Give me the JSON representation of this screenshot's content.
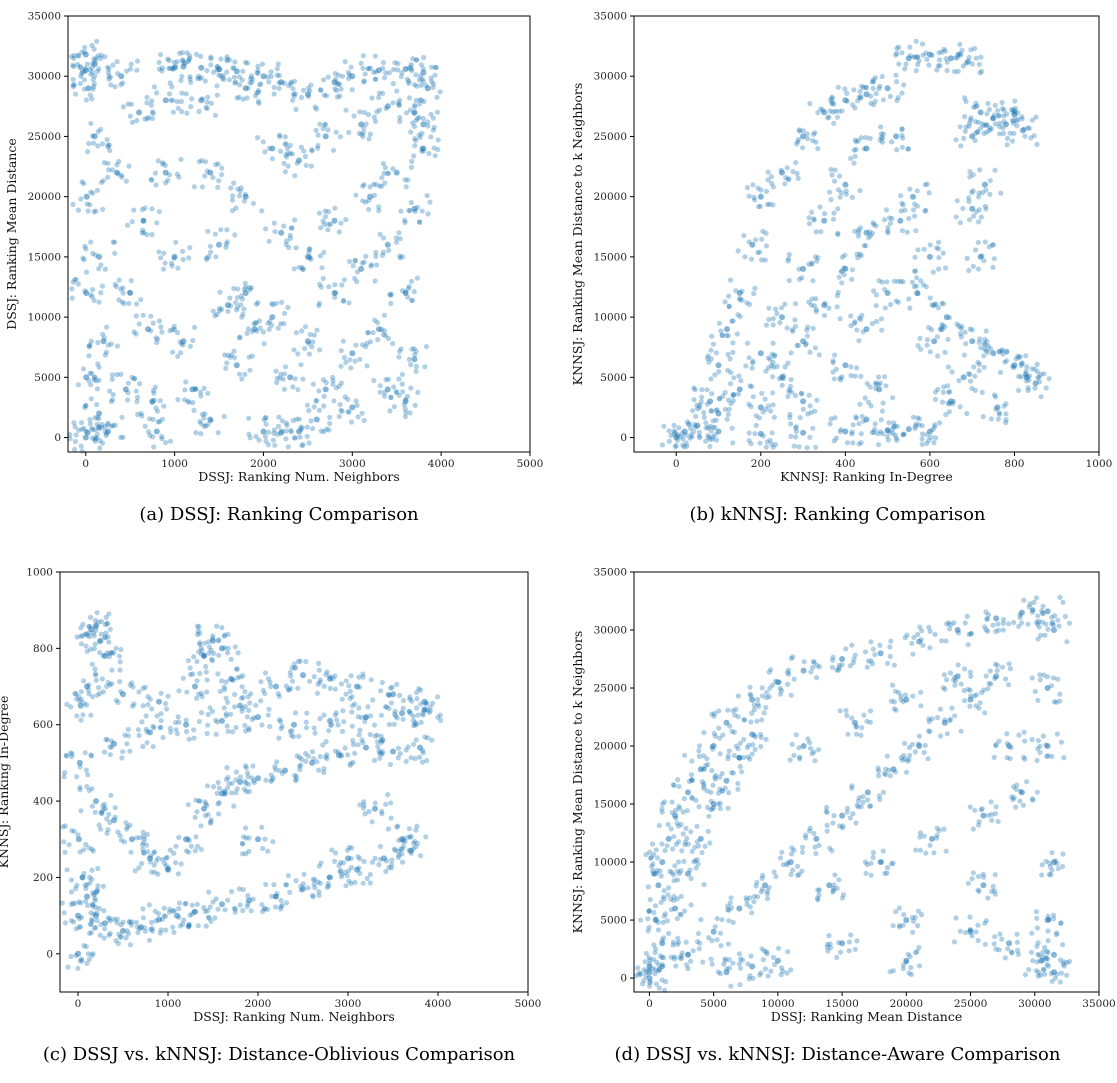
{
  "chart_data": [
    {
      "type": "scatter",
      "caption": "(a) DSSJ: Ranking Comparison",
      "xlabel": "DSSJ: Ranking Num. Neighbors",
      "ylabel": "DSSJ: Ranking Mean Distance",
      "xlim": [
        -200,
        5000
      ],
      "ylim": [
        -1200,
        35000
      ],
      "xticks": [
        0,
        1000,
        2000,
        3000,
        4000,
        5000
      ],
      "yticks": [
        0,
        5000,
        10000,
        15000,
        20000,
        25000,
        30000,
        35000
      ],
      "color": "#1f77b4",
      "grid": false,
      "points": [
        [
          0,
          31800
        ],
        [
          0,
          30500
        ],
        [
          30,
          29000
        ],
        [
          10,
          20000
        ],
        [
          5,
          12000
        ],
        [
          5,
          5000
        ],
        [
          0,
          0
        ],
        [
          20,
          400
        ],
        [
          100,
          31000
        ],
        [
          100,
          25000
        ],
        [
          150,
          15000
        ],
        [
          200,
          8000
        ],
        [
          150,
          2000
        ],
        [
          250,
          500
        ],
        [
          400,
          30000
        ],
        [
          350,
          22000
        ],
        [
          500,
          12000
        ],
        [
          450,
          4000
        ],
        [
          600,
          27000
        ],
        [
          650,
          18000
        ],
        [
          700,
          9000
        ],
        [
          750,
          3000
        ],
        [
          800,
          500
        ],
        [
          900,
          28000
        ],
        [
          1000,
          30700
        ],
        [
          1100,
          30800
        ],
        [
          1300,
          30700
        ],
        [
          1500,
          30600
        ],
        [
          1700,
          30400
        ],
        [
          900,
          22000
        ],
        [
          1000,
          15000
        ],
        [
          1100,
          8000
        ],
        [
          1200,
          4000
        ],
        [
          1300,
          28000
        ],
        [
          1400,
          22000
        ],
        [
          1500,
          16000
        ],
        [
          1600,
          11000
        ],
        [
          1700,
          6000
        ],
        [
          1400,
          1500
        ],
        [
          1800,
          29000
        ],
        [
          1800,
          20000
        ],
        [
          1800,
          12000
        ],
        [
          1900,
          9000
        ],
        [
          2000,
          30000
        ],
        [
          2200,
          29500
        ],
        [
          2500,
          28500
        ],
        [
          2800,
          29500
        ],
        [
          3000,
          30000
        ],
        [
          3300,
          30500
        ],
        [
          3600,
          30600
        ],
        [
          3800,
          30300
        ],
        [
          3850,
          29000
        ],
        [
          2100,
          24000
        ],
        [
          2400,
          23000
        ],
        [
          2700,
          25000
        ],
        [
          3100,
          26000
        ],
        [
          3400,
          27500
        ],
        [
          3700,
          27000
        ],
        [
          2200,
          17000
        ],
        [
          2500,
          15000
        ],
        [
          2800,
          18000
        ],
        [
          3200,
          20000
        ],
        [
          3500,
          22000
        ],
        [
          3800,
          24000
        ],
        [
          2100,
          10000
        ],
        [
          2500,
          8000
        ],
        [
          2800,
          12000
        ],
        [
          3100,
          14000
        ],
        [
          3400,
          16000
        ],
        [
          3700,
          19000
        ],
        [
          2300,
          5000
        ],
        [
          2700,
          4000
        ],
        [
          3000,
          7000
        ],
        [
          3300,
          9000
        ],
        [
          3600,
          12000
        ],
        [
          2600,
          1500
        ],
        [
          3000,
          2500
        ],
        [
          3400,
          4000
        ],
        [
          3700,
          6500
        ],
        [
          2000,
          500
        ],
        [
          2200,
          400
        ],
        [
          2400,
          500
        ],
        [
          3600,
          3000
        ],
        [
          3800,
          26000
        ]
      ]
    },
    {
      "type": "scatter",
      "caption": "(b) kNNSJ: Ranking Comparison",
      "xlabel": "KNNSJ: Ranking In-Degree",
      "ylabel": "KNNSJ: Ranking Mean Distance to k Neighbors",
      "xlim": [
        -100,
        1000
      ],
      "ylim": [
        -1200,
        35000
      ],
      "xticks": [
        0,
        200,
        400,
        600,
        800,
        1000
      ],
      "yticks": [
        0,
        5000,
        10000,
        15000,
        20000,
        25000,
        30000,
        35000
      ],
      "color": "#1f77b4",
      "grid": false,
      "points": [
        [
          0,
          0
        ],
        [
          20,
          500
        ],
        [
          50,
          1000
        ],
        [
          80,
          3000
        ],
        [
          100,
          6000
        ],
        [
          120,
          9000
        ],
        [
          150,
          12000
        ],
        [
          180,
          16000
        ],
        [
          200,
          20000
        ],
        [
          250,
          22000
        ],
        [
          300,
          25000
        ],
        [
          350,
          27000
        ],
        [
          400,
          28000
        ],
        [
          450,
          28500
        ],
        [
          100,
          2000
        ],
        [
          150,
          4000
        ],
        [
          200,
          7000
        ],
        [
          250,
          10000
        ],
        [
          300,
          14000
        ],
        [
          350,
          18000
        ],
        [
          400,
          21000
        ],
        [
          450,
          24000
        ],
        [
          200,
          2500
        ],
        [
          250,
          5000
        ],
        [
          300,
          8000
        ],
        [
          350,
          11000
        ],
        [
          400,
          14000
        ],
        [
          450,
          17000
        ],
        [
          300,
          3000
        ],
        [
          400,
          6000
        ],
        [
          450,
          9000
        ],
        [
          500,
          12000
        ],
        [
          100,
          500
        ],
        [
          200,
          300
        ],
        [
          300,
          400
        ],
        [
          400,
          500
        ],
        [
          500,
          600
        ],
        [
          550,
          700
        ],
        [
          500,
          29000
        ],
        [
          550,
          31500
        ],
        [
          600,
          31800
        ],
        [
          650,
          31500
        ],
        [
          690,
          31200
        ],
        [
          520,
          25000
        ],
        [
          560,
          20000
        ],
        [
          600,
          15000
        ],
        [
          640,
          10000
        ],
        [
          680,
          5000
        ],
        [
          530,
          18000
        ],
        [
          570,
          12000
        ],
        [
          610,
          8000
        ],
        [
          650,
          3000
        ],
        [
          700,
          25000
        ],
        [
          720,
          27000
        ],
        [
          750,
          26500
        ],
        [
          780,
          26000
        ],
        [
          800,
          26800
        ],
        [
          820,
          25500
        ],
        [
          700,
          8000
        ],
        [
          750,
          7000
        ],
        [
          800,
          6000
        ],
        [
          830,
          5000
        ],
        [
          850,
          4500
        ],
        [
          760,
          2500
        ],
        [
          720,
          15000
        ],
        [
          700,
          19000
        ],
        [
          730,
          21000
        ],
        [
          480,
          4000
        ],
        [
          450,
          1500
        ],
        [
          600,
          500
        ]
      ]
    },
    {
      "type": "scatter",
      "caption": "(c) DSSJ vs. kNNSJ: Distance-Oblivious Comparison",
      "xlabel": "DSSJ: Ranking Num. Neighbors",
      "ylabel": "KNNSJ: Ranking In-Degree",
      "xlim": [
        -200,
        5000
      ],
      "ylim": [
        -100,
        1000
      ],
      "xticks": [
        0,
        1000,
        2000,
        3000,
        4000,
        5000
      ],
      "yticks": [
        0,
        200,
        400,
        600,
        800,
        1000
      ],
      "color": "#1f77b4",
      "grid": false,
      "points": [
        [
          0,
          0
        ],
        [
          0,
          100
        ],
        [
          10,
          300
        ],
        [
          20,
          500
        ],
        [
          30,
          650
        ],
        [
          100,
          700
        ],
        [
          150,
          850
        ],
        [
          200,
          860
        ],
        [
          250,
          820
        ],
        [
          300,
          780
        ],
        [
          50,
          200
        ],
        [
          100,
          150
        ],
        [
          200,
          100
        ],
        [
          300,
          80
        ],
        [
          500,
          60
        ],
        [
          700,
          70
        ],
        [
          900,
          90
        ],
        [
          1100,
          100
        ],
        [
          1300,
          110
        ],
        [
          1600,
          130
        ],
        [
          1900,
          140
        ],
        [
          2200,
          150
        ],
        [
          2500,
          170
        ],
        [
          2800,
          200
        ],
        [
          3100,
          220
        ],
        [
          3400,
          250
        ],
        [
          3700,
          270
        ],
        [
          200,
          400
        ],
        [
          400,
          350
        ],
        [
          600,
          300
        ],
        [
          800,
          250
        ],
        [
          1000,
          220
        ],
        [
          1200,
          300
        ],
        [
          1400,
          380
        ],
        [
          1600,
          420
        ],
        [
          1800,
          450
        ],
        [
          2000,
          460
        ],
        [
          2300,
          480
        ],
        [
          2600,
          500
        ],
        [
          2900,
          520
        ],
        [
          3200,
          540
        ],
        [
          3500,
          530
        ],
        [
          3800,
          540
        ],
        [
          400,
          550
        ],
        [
          800,
          580
        ],
        [
          1200,
          600
        ],
        [
          1600,
          610
        ],
        [
          2000,
          620
        ],
        [
          2400,
          600
        ],
        [
          2800,
          610
        ],
        [
          3200,
          620
        ],
        [
          3600,
          630
        ],
        [
          3850,
          640
        ],
        [
          1300,
          700
        ],
        [
          1400,
          780
        ],
        [
          1500,
          820
        ],
        [
          1600,
          800
        ],
        [
          1700,
          720
        ],
        [
          2200,
          700
        ],
        [
          2500,
          730
        ],
        [
          2800,
          720
        ],
        [
          3100,
          700
        ],
        [
          3500,
          680
        ],
        [
          3850,
          660
        ],
        [
          500,
          680
        ],
        [
          900,
          660
        ],
        [
          1800,
          650
        ],
        [
          3300,
          380
        ],
        [
          3600,
          300
        ],
        [
          3000,
          250
        ],
        [
          2000,
          300
        ]
      ]
    },
    {
      "type": "scatter",
      "caption": "(d) DSSJ vs. kNNSJ: Distance-Aware Comparison",
      "xlabel": "DSSJ: Ranking Mean Distance",
      "ylabel": "KNNSJ: Ranking Mean Distance to k Neighbors",
      "xlim": [
        -1200,
        35000
      ],
      "ylim": [
        -1200,
        35000
      ],
      "xticks": [
        0,
        5000,
        10000,
        15000,
        20000,
        25000,
        30000,
        35000
      ],
      "yticks": [
        0,
        5000,
        10000,
        15000,
        20000,
        25000,
        30000,
        35000
      ],
      "color": "#1f77b4",
      "grid": false,
      "points": [
        [
          0,
          0
        ],
        [
          0,
          1000
        ],
        [
          0,
          500
        ],
        [
          500,
          5000
        ],
        [
          700,
          8000
        ],
        [
          1000,
          10000
        ],
        [
          1500,
          12000
        ],
        [
          2000,
          14000
        ],
        [
          3000,
          16000
        ],
        [
          4000,
          18000
        ],
        [
          5000,
          20000
        ],
        [
          6000,
          22000
        ],
        [
          8000,
          24000
        ],
        [
          10000,
          25500
        ],
        [
          12000,
          26500
        ],
        [
          15000,
          27500
        ],
        [
          18000,
          28000
        ],
        [
          21000,
          29000
        ],
        [
          24000,
          30000
        ],
        [
          27000,
          31000
        ],
        [
          29000,
          31500
        ],
        [
          31000,
          31600
        ],
        [
          31500,
          30000
        ],
        [
          31000,
          25000
        ],
        [
          31000,
          20000
        ],
        [
          31500,
          10000
        ],
        [
          31000,
          5000
        ],
        [
          31500,
          2000
        ],
        [
          31500,
          500
        ],
        [
          30500,
          1500
        ],
        [
          1000,
          3000
        ],
        [
          2000,
          6000
        ],
        [
          3000,
          9000
        ],
        [
          4000,
          12000
        ],
        [
          5000,
          15000
        ],
        [
          6000,
          17000
        ],
        [
          7000,
          19000
        ],
        [
          8000,
          21000
        ],
        [
          3000,
          2000
        ],
        [
          5000,
          4000
        ],
        [
          7000,
          6000
        ],
        [
          9000,
          8000
        ],
        [
          11000,
          10000
        ],
        [
          13000,
          12000
        ],
        [
          15000,
          14000
        ],
        [
          17000,
          16000
        ],
        [
          19000,
          18000
        ],
        [
          21000,
          20000
        ],
        [
          23000,
          22000
        ],
        [
          25000,
          24000
        ],
        [
          27000,
          26000
        ],
        [
          10000,
          1500
        ],
        [
          15000,
          3000
        ],
        [
          20000,
          5000
        ],
        [
          25000,
          4000
        ],
        [
          28000,
          3000
        ],
        [
          12000,
          20000
        ],
        [
          16000,
          22000
        ],
        [
          20000,
          24000
        ],
        [
          24000,
          26000
        ],
        [
          14000,
          8000
        ],
        [
          18000,
          10000
        ],
        [
          22000,
          12000
        ],
        [
          26000,
          14000
        ],
        [
          29000,
          16000
        ],
        [
          6000,
          500
        ],
        [
          8000,
          1000
        ],
        [
          20000,
          1500
        ],
        [
          26000,
          8000
        ],
        [
          28000,
          20000
        ]
      ]
    }
  ]
}
